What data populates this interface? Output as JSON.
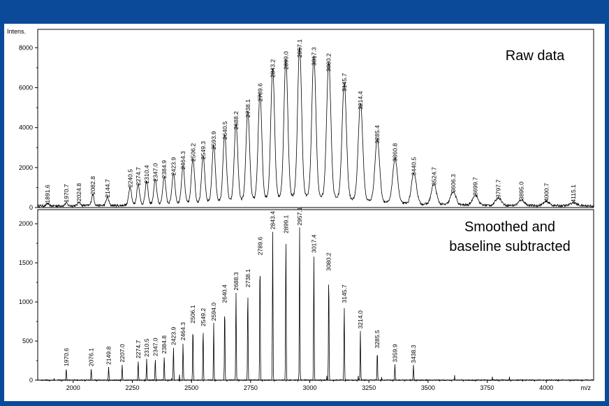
{
  "chart_data": [
    {
      "type": "line",
      "panel": "top",
      "ylabel": "Intens.",
      "xlabel": "",
      "ylim": [
        0,
        8500
      ],
      "xlim": [
        1850,
        4200
      ],
      "yticks": [
        0,
        2000,
        4000,
        6000,
        8000
      ],
      "annotation": "Raw data",
      "series": [
        {
          "peaks": [
            {
              "x": 1891.6,
              "y": 120,
              "label": "1891.6"
            },
            {
              "x": 1970.7,
              "y": 150,
              "label": "1970.7"
            },
            {
              "x": 2024.8,
              "y": 200,
              "label": "2024.8"
            },
            {
              "x": 2082.8,
              "y": 550,
              "label": "2082.8"
            },
            {
              "x": 2144.7,
              "y": 400,
              "label": "2144.7"
            },
            {
              "x": 2240.5,
              "y": 900,
              "label": "2240.5"
            },
            {
              "x": 2274.7,
              "y": 1000,
              "label": "2274.7"
            },
            {
              "x": 2310.4,
              "y": 1100,
              "label": "2310.4"
            },
            {
              "x": 2347.0,
              "y": 1200,
              "label": "2347.0"
            },
            {
              "x": 2384.9,
              "y": 1350,
              "label": "2384.9"
            },
            {
              "x": 2423.9,
              "y": 1500,
              "label": "2423.9"
            },
            {
              "x": 2464.3,
              "y": 1800,
              "label": "2464.3"
            },
            {
              "x": 2506.2,
              "y": 2200,
              "label": "2506.2"
            },
            {
              "x": 2549.3,
              "y": 2300,
              "label": "2549.3"
            },
            {
              "x": 2593.9,
              "y": 2800,
              "label": "2593.9"
            },
            {
              "x": 2640.5,
              "y": 3300,
              "label": "2640.5"
            },
            {
              "x": 2688.2,
              "y": 3800,
              "label": "2688.2"
            },
            {
              "x": 2738.1,
              "y": 4400,
              "label": "2738.1"
            },
            {
              "x": 2789.6,
              "y": 5200,
              "label": "2789.6"
            },
            {
              "x": 2843.2,
              "y": 6400,
              "label": "2843.2"
            },
            {
              "x": 2899.0,
              "y": 6800,
              "label": "2899.0"
            },
            {
              "x": 2957.1,
              "y": 7400,
              "label": "2957.1"
            },
            {
              "x": 3017.3,
              "y": 7000,
              "label": "3017.3"
            },
            {
              "x": 3080.2,
              "y": 6700,
              "label": "3080.2"
            },
            {
              "x": 3145.7,
              "y": 5700,
              "label": "3145.7"
            },
            {
              "x": 3214.4,
              "y": 4800,
              "label": "3214.4"
            },
            {
              "x": 3285.4,
              "y": 3100,
              "label": "3285.4"
            },
            {
              "x": 3360.8,
              "y": 2200,
              "label": "3360.8"
            },
            {
              "x": 3440.5,
              "y": 1500,
              "label": "3440.5"
            },
            {
              "x": 3524.7,
              "y": 1000,
              "label": "3524.7"
            },
            {
              "x": 3606.3,
              "y": 650,
              "label": "3606.3"
            },
            {
              "x": 3699.7,
              "y": 500,
              "label": "3699.7"
            },
            {
              "x": 3797.7,
              "y": 380,
              "label": "3797.7"
            },
            {
              "x": 3895.0,
              "y": 270,
              "label": "3895.0"
            },
            {
              "x": 4000.7,
              "y": 200,
              "label": "4000.7"
            },
            {
              "x": 4115.1,
              "y": 150,
              "label": "4115.1"
            }
          ]
        }
      ]
    },
    {
      "type": "line",
      "panel": "bottom",
      "ylabel": "",
      "xlabel": "m/z",
      "ylim": [
        0,
        2100
      ],
      "xlim": [
        1850,
        4200
      ],
      "yticks": [
        0,
        500,
        1000,
        1500,
        2000
      ],
      "xticks": [
        2000,
        2250,
        2500,
        2750,
        3000,
        3250,
        3500,
        3750,
        4000
      ],
      "annotation": [
        "Smoothed and",
        "baseline subtracted"
      ],
      "series": [
        {
          "peaks": [
            {
              "x": 1970.6,
              "y": 150,
              "label": "1970.6"
            },
            {
              "x": 2076.1,
              "y": 150,
              "label": "2076.1"
            },
            {
              "x": 2149.8,
              "y": 170,
              "label": "2149.8"
            },
            {
              "x": 2207.0,
              "y": 200,
              "label": "2207.0"
            },
            {
              "x": 2274.7,
              "y": 250,
              "label": "2274.7"
            },
            {
              "x": 2310.5,
              "y": 270,
              "label": "2310.5"
            },
            {
              "x": 2347.0,
              "y": 280,
              "label": "2347.0"
            },
            {
              "x": 2384.8,
              "y": 310,
              "label": "2384.8"
            },
            {
              "x": 2423.9,
              "y": 420,
              "label": "2423.9"
            },
            {
              "x": 2464.3,
              "y": 480,
              "label": "2464.3"
            },
            {
              "x": 2506.1,
              "y": 700,
              "label": "2506.1"
            },
            {
              "x": 2549.2,
              "y": 660,
              "label": "2549.2"
            },
            {
              "x": 2594.0,
              "y": 730,
              "label": "2594.0"
            },
            {
              "x": 2640.4,
              "y": 960,
              "label": "2640.4"
            },
            {
              "x": 2688.3,
              "y": 1120,
              "label": "2688.3"
            },
            {
              "x": 2738.1,
              "y": 1160,
              "label": "2738.1"
            },
            {
              "x": 2789.6,
              "y": 1570,
              "label": "2789.6"
            },
            {
              "x": 2843.4,
              "y": 1900,
              "label": "2843.4"
            },
            {
              "x": 2899.1,
              "y": 1850,
              "label": "2899.1"
            },
            {
              "x": 2957.1,
              "y": 1950,
              "label": "2957.1"
            },
            {
              "x": 3017.4,
              "y": 1600,
              "label": "3017.4"
            },
            {
              "x": 3080.2,
              "y": 1370,
              "label": "3080.2"
            },
            {
              "x": 3145.7,
              "y": 960,
              "label": "3145.7"
            },
            {
              "x": 3214.0,
              "y": 630,
              "label": "3214.0"
            },
            {
              "x": 3285.5,
              "y": 380,
              "label": "3285.5"
            },
            {
              "x": 3359.9,
              "y": 200,
              "label": "3359.9"
            },
            {
              "x": 3438.3,
              "y": 190,
              "label": "3438.3"
            }
          ]
        }
      ]
    }
  ]
}
